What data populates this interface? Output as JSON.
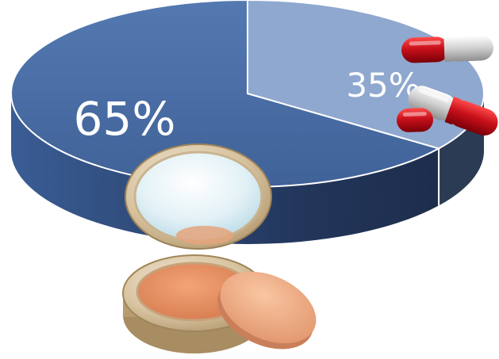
{
  "chart_data": {
    "type": "pie",
    "title": "",
    "categories": [
      "",
      ""
    ],
    "values": [
      65,
      35
    ],
    "labels": [
      "65%",
      "35%"
    ],
    "colors": {
      "major_top": "#4a6ea5",
      "major_side": "#27406a",
      "minor_top": "#8fa8cf",
      "minor_side": "#2c3b54"
    },
    "legend": "none",
    "icons": [
      "compact-powder-icon",
      "capsule-pill-icon"
    ]
  }
}
